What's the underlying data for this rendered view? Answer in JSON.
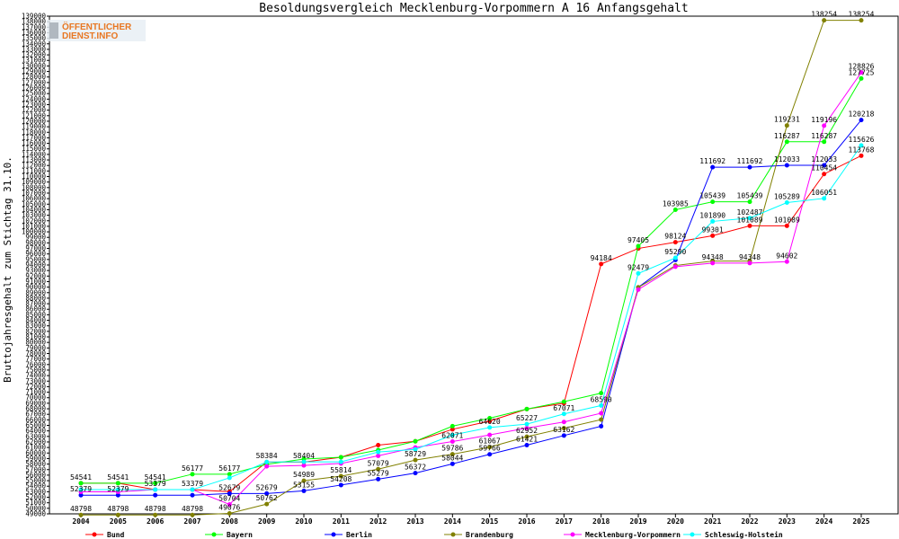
{
  "logo": {
    "line1": "ÖFFENTLICHER",
    "line2": "DIENST.INFO"
  },
  "chart_data": {
    "type": "line",
    "title": "Besoldungsvergleich Mecklenburg-Vorpommern A 16 Anfangsgehalt",
    "ylabel": "Bruttojahresgehalt zum Stichtag 31.10.",
    "xlabel": "",
    "ylim": [
      49000,
      139000
    ],
    "ytick_step": 1000,
    "grid": false,
    "legend_position": "bottom",
    "categories": [
      "2004",
      "2005",
      "2006",
      "2007",
      "2008",
      "2009",
      "2010",
      "2011",
      "2012",
      "2013",
      "2014",
      "2015",
      "2016",
      "2017",
      "2018",
      "2019",
      "2020",
      "2021",
      "2022",
      "2023",
      "2024",
      "2025"
    ],
    "series": [
      {
        "name": "Bund",
        "color": "#ff0000",
        "values": [
          54541,
          54541,
          53379,
          53379,
          52999,
          58354,
          58354,
          59236,
          61423,
          62122,
          64281,
          65779,
          67947,
          69000,
          94184,
          96995,
          98124,
          99301,
          101089,
          101089,
          110454,
          113768
        ]
      },
      {
        "name": "Bayern",
        "color": "#00ff00",
        "values": [
          54541,
          54541,
          54541,
          56177,
          56177,
          57960,
          58904,
          59236,
          60540,
          62122,
          64861,
          66295,
          67947,
          69281,
          70826,
          97405,
          103985,
          105439,
          105439,
          116287,
          116287,
          127725
        ]
      },
      {
        "name": "Berlin",
        "color": "#0000ff",
        "values": [
          52379,
          52379,
          52379,
          52379,
          52679,
          52679,
          53155,
          54208,
          55279,
          56372,
          58044,
          59766,
          61421,
          63162,
          64847,
          89963,
          94910,
          111692,
          111692,
          112033,
          112033,
          120218
        ]
      },
      {
        "name": "Brandenburg",
        "color": "#808000",
        "values": [
          48798,
          48798,
          48798,
          48798,
          49076,
          50762,
          54989,
          55814,
          57079,
          58729,
          59786,
          61067,
          62952,
          64484,
          66047,
          89954,
          93910,
          94719,
          94719,
          119231,
          138254,
          138254
        ]
      },
      {
        "name": "Mecklenburg-Vorpommern",
        "color": "#ff00ff",
        "values": [
          52979,
          52979,
          53379,
          53379,
          50704,
          57598,
          57755,
          58108,
          59491,
          60995,
          62071,
          63281,
          64516,
          65617,
          67196,
          89554,
          93700,
          94348,
          94348,
          94602,
          119196,
          128826
        ]
      },
      {
        "name": "Schleswig-Holstein",
        "color": "#00ffff",
        "values": [
          53379,
          53379,
          53379,
          53379,
          55510,
          58384,
          58404,
          58406,
          60180,
          60665,
          63260,
          64620,
          65227,
          67071,
          68590,
          92479,
          95290,
          101890,
          102487,
          105289,
          106051,
          115626
        ]
      }
    ],
    "data_labels": [
      {
        "series": 0,
        "i": 0,
        "text": "54541"
      },
      {
        "series": 0,
        "i": 1,
        "text": "54541"
      },
      {
        "series": 0,
        "i": 14,
        "text": "94184"
      },
      {
        "series": 0,
        "i": 16,
        "text": "98124"
      },
      {
        "series": 0,
        "i": 17,
        "text": "99301"
      },
      {
        "series": 0,
        "i": 18,
        "text": "101089"
      },
      {
        "series": 0,
        "i": 19,
        "text": "101089"
      },
      {
        "series": 0,
        "i": 20,
        "text": "110454"
      },
      {
        "series": 0,
        "i": 21,
        "text": "113768"
      },
      {
        "series": 1,
        "i": 2,
        "text": "54541"
      },
      {
        "series": 1,
        "i": 3,
        "text": "56177"
      },
      {
        "series": 1,
        "i": 4,
        "text": "56177"
      },
      {
        "series": 1,
        "i": 15,
        "text": "97405"
      },
      {
        "series": 1,
        "i": 16,
        "text": "103985"
      },
      {
        "series": 1,
        "i": 17,
        "text": "105439"
      },
      {
        "series": 1,
        "i": 18,
        "text": "105439"
      },
      {
        "series": 1,
        "i": 19,
        "text": "116287"
      },
      {
        "series": 1,
        "i": 20,
        "text": "116287"
      },
      {
        "series": 1,
        "i": 21,
        "text": "127725"
      },
      {
        "series": 2,
        "i": 0,
        "text": "52379"
      },
      {
        "series": 2,
        "i": 1,
        "text": "52379"
      },
      {
        "series": 2,
        "i": 4,
        "text": "52679"
      },
      {
        "series": 2,
        "i": 5,
        "text": "52679"
      },
      {
        "series": 2,
        "i": 6,
        "text": "53155"
      },
      {
        "series": 2,
        "i": 7,
        "text": "54208"
      },
      {
        "series": 2,
        "i": 8,
        "text": "55279"
      },
      {
        "series": 2,
        "i": 9,
        "text": "56372"
      },
      {
        "series": 2,
        "i": 10,
        "text": "58044"
      },
      {
        "series": 2,
        "i": 11,
        "text": "59766"
      },
      {
        "series": 2,
        "i": 12,
        "text": "61421"
      },
      {
        "series": 2,
        "i": 13,
        "text": "63162"
      },
      {
        "series": 2,
        "i": 17,
        "text": "111692"
      },
      {
        "series": 2,
        "i": 18,
        "text": "111692"
      },
      {
        "series": 2,
        "i": 19,
        "text": "112033"
      },
      {
        "series": 2,
        "i": 20,
        "text": "112033"
      },
      {
        "series": 2,
        "i": 21,
        "text": "120218"
      },
      {
        "series": 3,
        "i": 0,
        "text": "48798"
      },
      {
        "series": 3,
        "i": 1,
        "text": "48798"
      },
      {
        "series": 3,
        "i": 2,
        "text": "48798"
      },
      {
        "series": 3,
        "i": 3,
        "text": "48798"
      },
      {
        "series": 3,
        "i": 4,
        "text": "49076"
      },
      {
        "series": 3,
        "i": 5,
        "text": "50762"
      },
      {
        "series": 3,
        "i": 6,
        "text": "54989"
      },
      {
        "series": 3,
        "i": 7,
        "text": "55814"
      },
      {
        "series": 3,
        "i": 8,
        "text": "57079"
      },
      {
        "series": 3,
        "i": 9,
        "text": "58729"
      },
      {
        "series": 3,
        "i": 10,
        "text": "59786"
      },
      {
        "series": 3,
        "i": 11,
        "text": "61067"
      },
      {
        "series": 3,
        "i": 12,
        "text": "62952"
      },
      {
        "series": 3,
        "i": 19,
        "text": "119231"
      },
      {
        "series": 3,
        "i": 20,
        "text": "138254"
      },
      {
        "series": 3,
        "i": 21,
        "text": "138254"
      },
      {
        "series": 4,
        "i": 2,
        "text": "53379"
      },
      {
        "series": 4,
        "i": 3,
        "text": "53379"
      },
      {
        "series": 4,
        "i": 4,
        "text": "50704"
      },
      {
        "series": 4,
        "i": 10,
        "text": "62071"
      },
      {
        "series": 4,
        "i": 17,
        "text": "94348"
      },
      {
        "series": 4,
        "i": 18,
        "text": "94348"
      },
      {
        "series": 4,
        "i": 19,
        "text": "94602"
      },
      {
        "series": 4,
        "i": 20,
        "text": "119196"
      },
      {
        "series": 4,
        "i": 21,
        "text": "128826"
      },
      {
        "series": 5,
        "i": 5,
        "text": "58384"
      },
      {
        "series": 5,
        "i": 6,
        "text": "58404"
      },
      {
        "series": 5,
        "i": 11,
        "text": "64620"
      },
      {
        "series": 5,
        "i": 12,
        "text": "65227"
      },
      {
        "series": 5,
        "i": 13,
        "text": "67071"
      },
      {
        "series": 5,
        "i": 14,
        "text": "68590"
      },
      {
        "series": 5,
        "i": 15,
        "text": "92479"
      },
      {
        "series": 5,
        "i": 16,
        "text": "95290"
      },
      {
        "series": 5,
        "i": 17,
        "text": "101890"
      },
      {
        "series": 5,
        "i": 18,
        "text": "102487"
      },
      {
        "series": 5,
        "i": 19,
        "text": "105289"
      },
      {
        "series": 5,
        "i": 20,
        "text": "106051"
      },
      {
        "series": 5,
        "i": 21,
        "text": "115626"
      }
    ]
  }
}
